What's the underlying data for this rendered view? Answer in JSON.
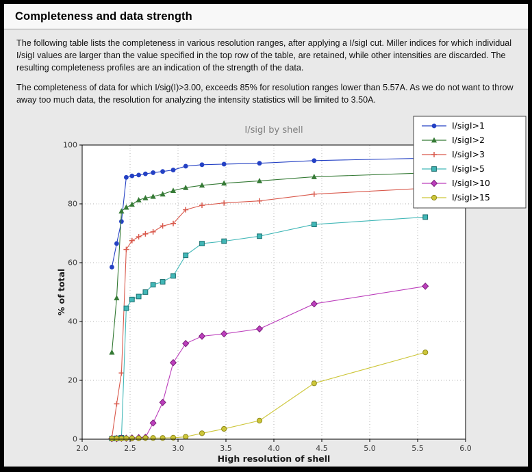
{
  "page": {
    "title": "Completeness and data strength",
    "paragraphs": [
      "The following table lists the completeness in various resolution ranges, after applying a I/sigI cut. Miller indices for which individual I/sigI values are larger than the value specified in the top row of the table, are retained, while other intensities are discarded. The resulting completeness profiles are an indication of the strength of the data.",
      "The completeness of data for which I/sig(I)>3.00, exceeds  85% for resolution ranges lower than 5.57A. As we do not want to throw away too much data, the resolution for analyzing the intensity statistics will be limited to 3.50A."
    ]
  },
  "chart_data": {
    "type": "line",
    "title": "I/sigI by shell",
    "xlabel": "High resolution of shell",
    "ylabel": "% of total",
    "xlim": [
      2.0,
      6.0
    ],
    "ylim": [
      0,
      100
    ],
    "xticks": [
      2.0,
      2.5,
      3.0,
      3.5,
      4.0,
      4.5,
      5.0,
      5.5,
      6.0
    ],
    "yticks": [
      0,
      20,
      40,
      60,
      80,
      100
    ],
    "grid": true,
    "grid_style": "dotted",
    "legend_position": "upper-right overlapping plot corner",
    "plot_bg": "#ffffff",
    "figure_bg": "#e9e9e9",
    "x": [
      2.31,
      2.36,
      2.41,
      2.46,
      2.52,
      2.59,
      2.66,
      2.74,
      2.84,
      2.95,
      3.08,
      3.25,
      3.48,
      3.85,
      4.42,
      5.58
    ],
    "series": [
      {
        "name": "I/sigI>1",
        "color": "#2441c4",
        "edge": "#2441c4",
        "marker": "circle",
        "values": [
          58.5,
          66.5,
          74.0,
          89.0,
          89.5,
          89.8,
          90.2,
          90.6,
          91.0,
          91.5,
          92.8,
          93.3,
          93.5,
          93.8,
          94.7,
          95.5
        ]
      },
      {
        "name": "I/sigI>2",
        "color": "#357a35",
        "edge": "#357a35",
        "marker": "triangle",
        "values": [
          29.5,
          48.0,
          77.5,
          78.8,
          79.8,
          81.3,
          82.0,
          82.5,
          83.3,
          84.5,
          85.5,
          86.3,
          87.0,
          87.8,
          89.2,
          90.5
        ]
      },
      {
        "name": "I/sigI>3",
        "color": "#d9594c",
        "edge": "#d9594c",
        "marker": "plus",
        "values": [
          0.5,
          12.0,
          22.5,
          64.5,
          67.5,
          68.8,
          69.8,
          70.5,
          72.5,
          73.3,
          78.0,
          79.5,
          80.3,
          81.0,
          83.3,
          85.3
        ]
      },
      {
        "name": "I/sigI>5",
        "color": "#41b7b7",
        "edge": "#1b6e6e",
        "marker": "square",
        "values": [
          0.2,
          0.3,
          0.5,
          44.5,
          47.5,
          48.5,
          50.0,
          52.5,
          53.5,
          55.5,
          62.5,
          66.5,
          67.3,
          69.0,
          73.0,
          75.5
        ]
      },
      {
        "name": "I/sigI>10",
        "color": "#bc3fbc",
        "edge": "#7c1f7c",
        "marker": "diamond",
        "values": [
          0.2,
          0.2,
          0.3,
          0.3,
          0.4,
          0.5,
          0.6,
          5.5,
          12.5,
          26.0,
          32.5,
          35.0,
          35.8,
          37.5,
          46.0,
          52.0
        ]
      },
      {
        "name": "I/sigI>15",
        "color": "#cdc639",
        "edge": "#8f8a1a",
        "marker": "circle-open",
        "values": [
          0.2,
          0.2,
          0.2,
          0.3,
          0.3,
          0.3,
          0.4,
          0.4,
          0.4,
          0.5,
          0.8,
          2.0,
          3.5,
          6.3,
          19.0,
          29.5
        ]
      }
    ]
  }
}
